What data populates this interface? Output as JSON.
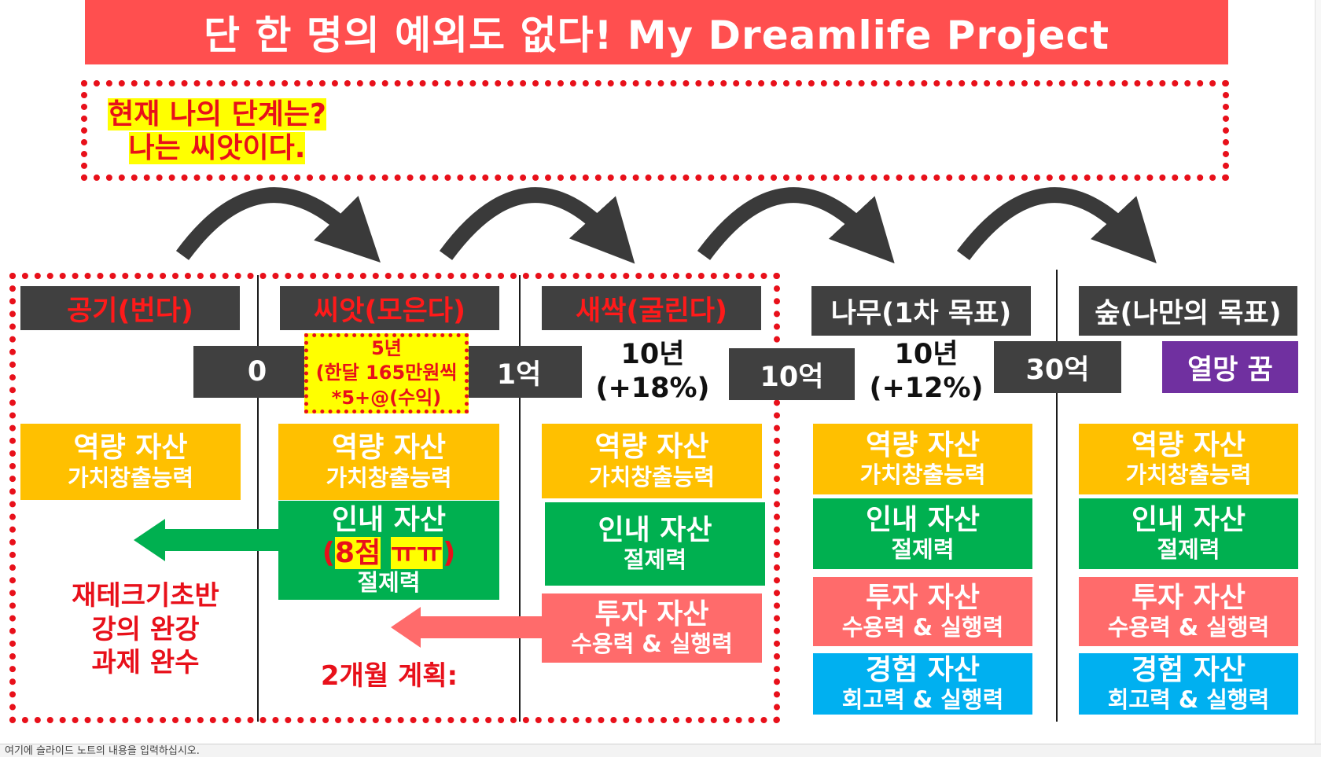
{
  "slide": {
    "title": "단 한 명의 예외도 없다! My Dreamlife Project",
    "status_question": "현재 나의 단계는?",
    "status_answer": "나는 씨앗이다."
  },
  "stages": [
    {
      "label": "공기(번다)"
    },
    {
      "label": "씨앗(모은다)"
    },
    {
      "label": "새싹(굴린다)"
    },
    {
      "label": "나무(1차 목표)"
    },
    {
      "label": "숲(나만의 목표)"
    }
  ],
  "values": [
    "0",
    "1억",
    "10억",
    "30억",
    "열망 꿈"
  ],
  "periods": [
    {
      "line1": "10년",
      "line2": "(+18%)"
    },
    {
      "line1": "10년",
      "line2": "(+12%)"
    }
  ],
  "seed_plan": {
    "line1": "5년",
    "line2": "(한달 165만원씩",
    "line3": "*5+@(수익)"
  },
  "assets": {
    "capability": {
      "title": "역량 자산",
      "sub": "가치창출능력"
    },
    "patience": {
      "title": "인내 자산",
      "sub": "절제력",
      "score_prefix": "(",
      "score_value": "8점",
      "score_sep": " ",
      "score_emoji": "ㅠㅠ",
      "score_suffix": ")"
    },
    "investment": {
      "title": "투자 자산",
      "sub": "수용력 & 실행력"
    },
    "experience": {
      "title": "경험 자산",
      "sub": "회고력 & 실행력"
    }
  },
  "notes": {
    "study_line1": "재테크기초반",
    "study_line2": "강의 완강",
    "study_line3": "과제 완수",
    "plan": "2개월 계획:"
  },
  "status_bar": {
    "placeholder": "여기에 슬라이드 노트의 내용을 입력하십시오."
  },
  "colors": {
    "title_bg": "#ff4f4f",
    "dark_box": "#404040",
    "capability": "#ffc000",
    "patience": "#00b050",
    "investment": "#ff6b6b",
    "experience": "#00b0f0",
    "dream": "#7030a0",
    "highlight_red": "#e8101a",
    "highlight_yellow": "#ffff00"
  }
}
